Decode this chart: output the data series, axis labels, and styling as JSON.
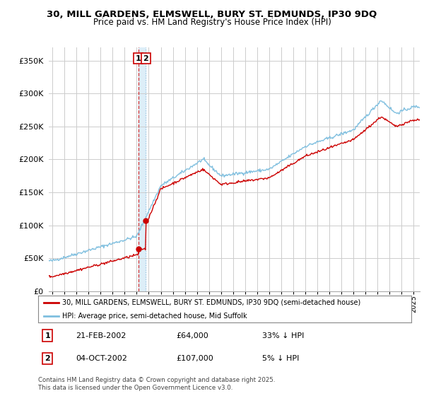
{
  "title_line1": "30, MILL GARDENS, ELMSWELL, BURY ST. EDMUNDS, IP30 9DQ",
  "title_line2": "Price paid vs. HM Land Registry's House Price Index (HPI)",
  "ylim": [
    0,
    370000
  ],
  "yticks": [
    0,
    50000,
    100000,
    150000,
    200000,
    250000,
    300000,
    350000
  ],
  "ytick_labels": [
    "£0",
    "£50K",
    "£100K",
    "£150K",
    "£200K",
    "£250K",
    "£300K",
    "£350K"
  ],
  "xlim_start": 1994.7,
  "xlim_end": 2025.5,
  "xticks": [
    1995,
    1996,
    1997,
    1998,
    1999,
    2000,
    2001,
    2002,
    2003,
    2004,
    2005,
    2006,
    2007,
    2008,
    2009,
    2010,
    2011,
    2012,
    2013,
    2014,
    2015,
    2016,
    2017,
    2018,
    2019,
    2020,
    2021,
    2022,
    2023,
    2024,
    2025
  ],
  "sale1_x": 2002.13,
  "sale1_y": 64000,
  "sale2_x": 2002.75,
  "sale2_y": 107000,
  "line1_color": "#cc0000",
  "line2_color": "#7fbfdf",
  "shade_color": "#ddeef8",
  "legend_line1": "30, MILL GARDENS, ELMSWELL, BURY ST. EDMUNDS, IP30 9DQ (semi-detached house)",
  "legend_line2": "HPI: Average price, semi-detached house, Mid Suffolk",
  "table_entries": [
    {
      "num": "1",
      "date": "21-FEB-2002",
      "price": "£64,000",
      "hpi": "33% ↓ HPI"
    },
    {
      "num": "2",
      "date": "04-OCT-2002",
      "price": "£107,000",
      "hpi": "5% ↓ HPI"
    }
  ],
  "footnote": "Contains HM Land Registry data © Crown copyright and database right 2025.\nThis data is licensed under the Open Government Licence v3.0.",
  "background_color": "#ffffff",
  "grid_color": "#cccccc"
}
